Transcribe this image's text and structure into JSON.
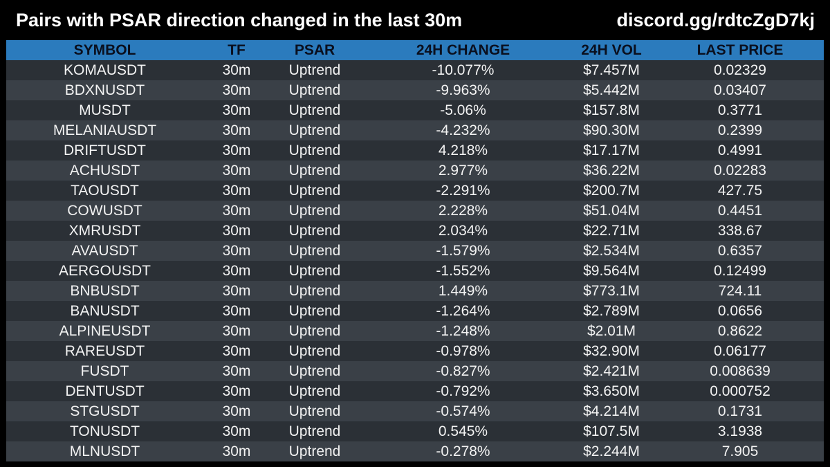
{
  "header": {
    "title": "Pairs with PSAR direction changed in the last 30m",
    "link": "discord.gg/rdtcZgD7kj"
  },
  "colors": {
    "background": "#000000",
    "header_bar": "#2b7bbd",
    "row_dark": "#2b3036",
    "row_light": "#3a4047",
    "text": "#ffffff"
  },
  "table": {
    "columns": [
      "SYMBOL",
      "TF",
      "PSAR",
      "24H CHANGE",
      "24H VOL",
      "LAST PRICE"
    ],
    "rows": [
      [
        "KOMAUSDT",
        "30m",
        "Uptrend",
        "-10.077%",
        "$7.457M",
        "0.02329"
      ],
      [
        "BDXNUSDT",
        "30m",
        "Uptrend",
        "-9.963%",
        "$5.442M",
        "0.03407"
      ],
      [
        "MUSDT",
        "30m",
        "Uptrend",
        "-5.06%",
        "$157.8M",
        "0.3771"
      ],
      [
        "MELANIAUSDT",
        "30m",
        "Uptrend",
        "-4.232%",
        "$90.30M",
        "0.2399"
      ],
      [
        "DRIFTUSDT",
        "30m",
        "Uptrend",
        "4.218%",
        "$17.17M",
        "0.4991"
      ],
      [
        "ACHUSDT",
        "30m",
        "Uptrend",
        "2.977%",
        "$36.22M",
        "0.02283"
      ],
      [
        "TAOUSDT",
        "30m",
        "Uptrend",
        "-2.291%",
        "$200.7M",
        "427.75"
      ],
      [
        "COWUSDT",
        "30m",
        "Uptrend",
        "2.228%",
        "$51.04M",
        "0.4451"
      ],
      [
        "XMRUSDT",
        "30m",
        "Uptrend",
        "2.034%",
        "$22.71M",
        "338.67"
      ],
      [
        "AVAUSDT",
        "30m",
        "Uptrend",
        "-1.579%",
        "$2.534M",
        "0.6357"
      ],
      [
        "AERGOUSDT",
        "30m",
        "Uptrend",
        "-1.552%",
        "$9.564M",
        "0.12499"
      ],
      [
        "BNBUSDT",
        "30m",
        "Uptrend",
        "1.449%",
        "$773.1M",
        "724.11"
      ],
      [
        "BANUSDT",
        "30m",
        "Uptrend",
        "-1.264%",
        "$2.789M",
        "0.0656"
      ],
      [
        "ALPINEUSDT",
        "30m",
        "Uptrend",
        "-1.248%",
        "$2.01M",
        "0.8622"
      ],
      [
        "RAREUSDT",
        "30m",
        "Uptrend",
        "-0.978%",
        "$32.90M",
        "0.06177"
      ],
      [
        "FUSDT",
        "30m",
        "Uptrend",
        "-0.827%",
        "$2.421M",
        "0.008639"
      ],
      [
        "DENTUSDT",
        "30m",
        "Uptrend",
        "-0.792%",
        "$3.650M",
        "0.000752"
      ],
      [
        "STGUSDT",
        "30m",
        "Uptrend",
        "-0.574%",
        "$4.214M",
        "0.1731"
      ],
      [
        "TONUSDT",
        "30m",
        "Uptrend",
        "0.545%",
        "$107.5M",
        "3.1938"
      ],
      [
        "MLNUSDT",
        "30m",
        "Uptrend",
        "-0.278%",
        "$2.244M",
        "7.905"
      ]
    ]
  }
}
